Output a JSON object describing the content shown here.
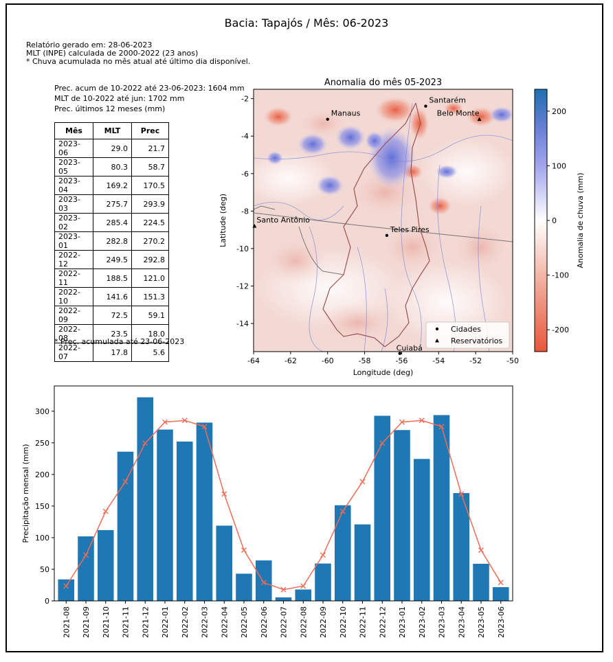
{
  "report": {
    "title": "Bacia: Tapajós / Mês: 06-2023",
    "info_lines": [
      "Relatório gerado em: 28-06-2023",
      "MLT (INPE) calculada de 2000-2022 (23 anos)",
      "* Chuva acumulada no mês atual até último dia disponível."
    ],
    "stat_lines": [
      "Prec. acum de 10-2022 até 23-06-2023: 1604 mm",
      "MLT de 10-2022 até jun: 1702 mm",
      "Prec. últimos 12 meses (mm)"
    ],
    "table": {
      "headers": [
        "Mês",
        "MLT",
        "Prec"
      ],
      "rows": [
        [
          "2023-06",
          "29.0",
          "21.7"
        ],
        [
          "2023-05",
          "80.3",
          "58.7"
        ],
        [
          "2023-04",
          "169.2",
          "170.5"
        ],
        [
          "2023-03",
          "275.7",
          "293.9"
        ],
        [
          "2023-02",
          "285.4",
          "224.5"
        ],
        [
          "2023-01",
          "282.8",
          "270.2"
        ],
        [
          "2022-12",
          "249.5",
          "292.8"
        ],
        [
          "2022-11",
          "188.5",
          "121.0"
        ],
        [
          "2022-10",
          "141.6",
          "151.3"
        ],
        [
          "2022-09",
          "72.5",
          "59.1"
        ],
        [
          "2022-08",
          "23.5",
          "18.0"
        ],
        [
          "2022-07",
          "17.8",
          "5.6"
        ]
      ]
    },
    "table_note": "* Prec. acumulada até 23-06-2023"
  },
  "chart_data": [
    {
      "type": "heatmap",
      "title": "Anomalia do mês 05-2023",
      "xlabel": "Longitude (deg)",
      "ylabel": "Latitude (deg)",
      "xlim": [
        -64,
        -50
      ],
      "ylim": [
        -15.5,
        -1.5
      ],
      "xticks": [
        -64,
        -62,
        -60,
        -58,
        -56,
        -54,
        -52,
        -50
      ],
      "yticks": [
        -2,
        -4,
        -6,
        -8,
        -10,
        -12,
        -14
      ],
      "colorbar": {
        "label": "Anomalia de chuva (mm)",
        "range": [
          -240,
          240
        ],
        "ticks": [
          200,
          100,
          0,
          -100,
          -200
        ]
      },
      "cities": [
        {
          "name": "Manaus",
          "lon": -60.0,
          "lat": -3.1
        },
        {
          "name": "Santarém",
          "lon": -54.7,
          "lat": -2.4
        },
        {
          "name": "Teles Pires",
          "lon": -56.8,
          "lat": -9.3
        },
        {
          "name": "Cuiabá",
          "lon": -56.1,
          "lat": -15.6
        }
      ],
      "reservoirs": [
        {
          "name": "Belo Monte",
          "lon": -51.8,
          "lat": -3.1
        },
        {
          "name": "Santo Antônio",
          "lon": -63.95,
          "lat": -8.8
        }
      ],
      "legend": {
        "position": "bottom-right",
        "entries": [
          "Cidades",
          "Reservatórios"
        ]
      }
    },
    {
      "type": "bar",
      "ylabel": "Precipitação mensal (mm)",
      "ylim": [
        0,
        340
      ],
      "yticks": [
        0,
        50,
        100,
        150,
        200,
        250,
        300
      ],
      "categories": [
        "2021-08",
        "2021-09",
        "2021-10",
        "2021-11",
        "2021-12",
        "2022-01",
        "2022-02",
        "2022-03",
        "2022-04",
        "2022-05",
        "2022-06",
        "2022-07",
        "2022-08",
        "2022-09",
        "2022-10",
        "2022-11",
        "2022-12",
        "2023-01",
        "2023-02",
        "2023-03",
        "2023-04",
        "2023-05",
        "2023-06"
      ],
      "series": [
        {
          "type": "bar",
          "color": "#1f77b4",
          "values": [
            34,
            102,
            112,
            236,
            322,
            271,
            252,
            282,
            119,
            43,
            64,
            5.6,
            18.0,
            59.1,
            151.3,
            121.0,
            292.8,
            270.2,
            224.5,
            293.9,
            170.5,
            58.7,
            21.7
          ]
        },
        {
          "type": "line",
          "color": "#ef6c57",
          "marker": "x",
          "values": [
            23.5,
            72.5,
            141.6,
            188.5,
            249.5,
            282.8,
            285.4,
            275.7,
            169.2,
            80.3,
            29.0,
            17.8,
            23.5,
            72.5,
            141.6,
            188.5,
            249.5,
            282.8,
            285.4,
            275.7,
            169.2,
            80.3,
            29.0
          ]
        }
      ]
    }
  ]
}
